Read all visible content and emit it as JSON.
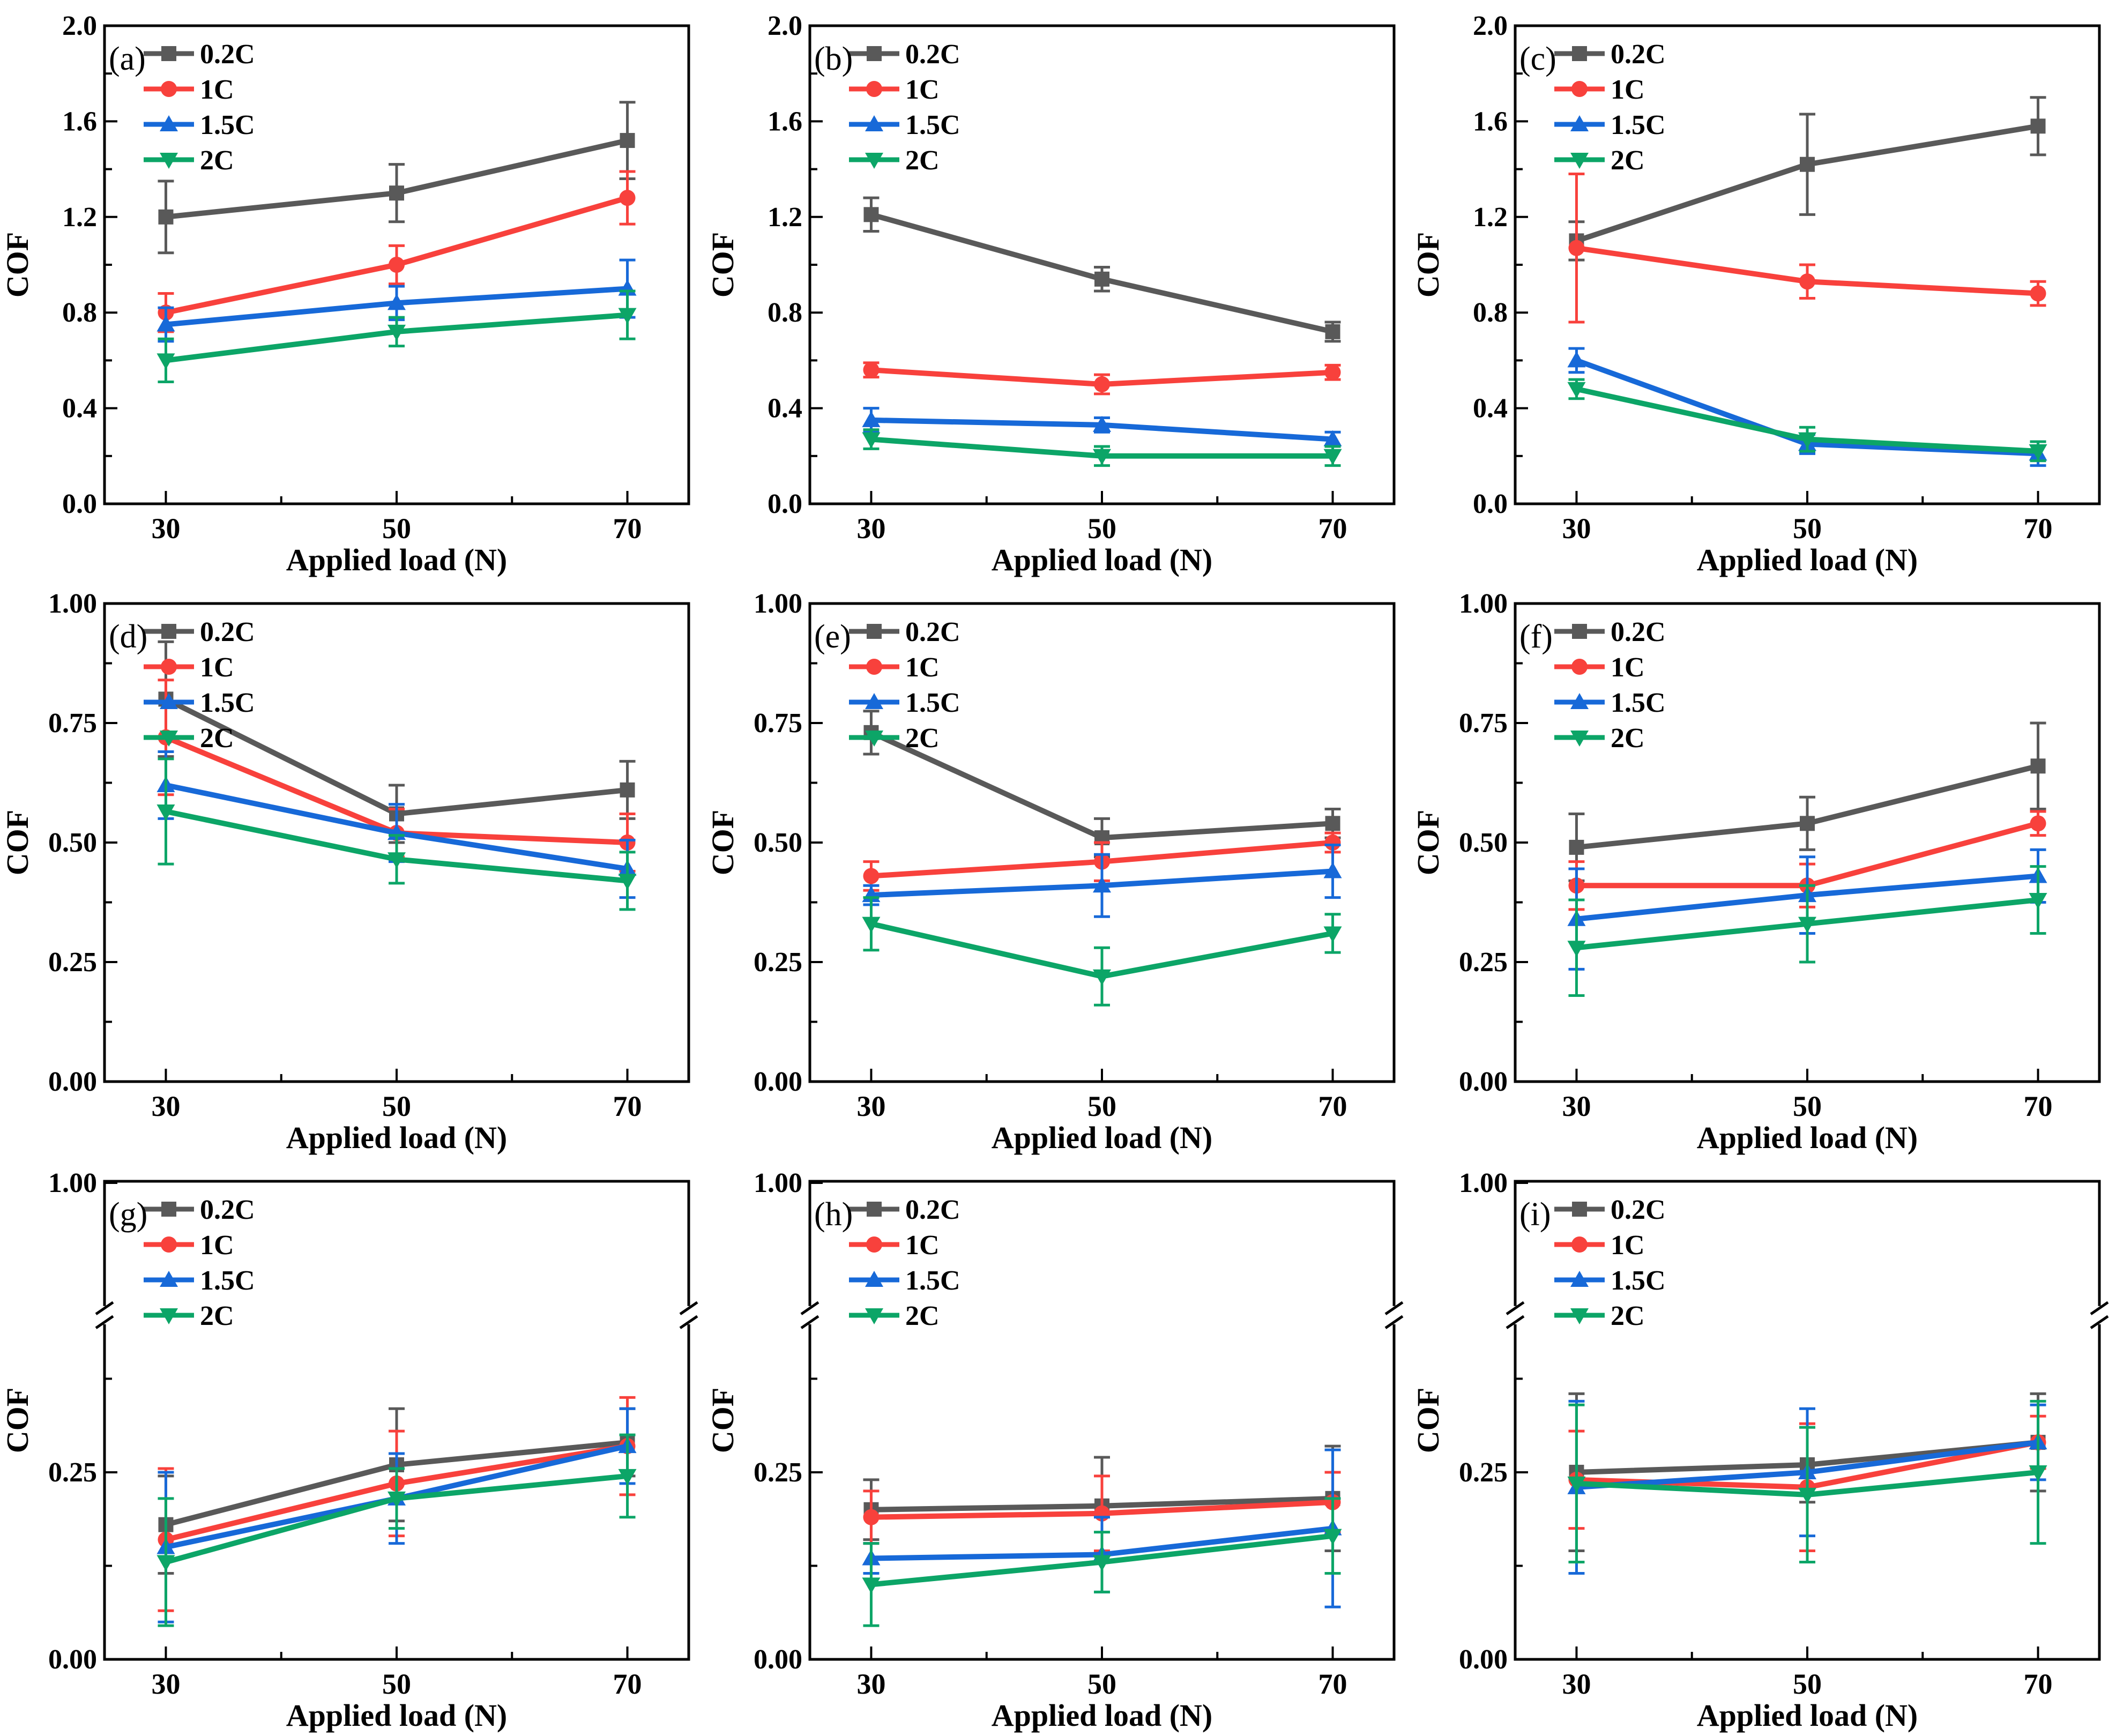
{
  "figure": {
    "xlabel": "Applied load (N)",
    "ylabel": "COF",
    "series_styles": [
      {
        "name": "0.2C",
        "color": "#595959",
        "marker": "square"
      },
      {
        "name": "1C",
        "color": "#F8413C",
        "marker": "circle"
      },
      {
        "name": "1.5C",
        "color": "#1769D8",
        "marker": "triangle-up"
      },
      {
        "name": "2C",
        "color": "#0CA567",
        "marker": "triangle-down"
      }
    ],
    "legend_labels": [
      "0.2C",
      "1C",
      "1.5C",
      "2C"
    ],
    "x_tick_labels": [
      "30",
      "50",
      "70"
    ]
  },
  "chart_data": [
    {
      "id": "a",
      "panel_label": "(a)",
      "type": "line",
      "x": [
        30,
        50,
        70
      ],
      "xlabel": "Applied load (N)",
      "ylabel": "COF",
      "ylim": [
        0,
        2.0
      ],
      "yticks": [
        {
          "v": 0,
          "label": "0.0"
        },
        {
          "v": 0.4,
          "label": "0.4"
        },
        {
          "v": 0.8,
          "label": "0.8"
        },
        {
          "v": 1.2,
          "label": "1.2"
        },
        {
          "v": 1.6,
          "label": "1.6"
        },
        {
          "v": 2.0,
          "label": "2.0"
        }
      ],
      "yminor": [
        0.2,
        0.6,
        1.0,
        1.4,
        1.8
      ],
      "legend_position": "top-left",
      "grid": false,
      "series": [
        {
          "name": "0.2C",
          "values": [
            1.2,
            1.3,
            1.52
          ],
          "err": [
            0.15,
            0.12,
            0.16
          ]
        },
        {
          "name": "1C",
          "values": [
            0.8,
            1.0,
            1.28
          ],
          "err": [
            0.08,
            0.08,
            0.11
          ]
        },
        {
          "name": "1.5C",
          "values": [
            0.75,
            0.84,
            0.9
          ],
          "err": [
            0.07,
            0.07,
            0.12
          ]
        },
        {
          "name": "2C",
          "values": [
            0.6,
            0.72,
            0.79
          ],
          "err": [
            0.09,
            0.06,
            0.1
          ]
        }
      ]
    },
    {
      "id": "b",
      "panel_label": "(b)",
      "type": "line",
      "x": [
        30,
        50,
        70
      ],
      "xlabel": "Applied load (N)",
      "ylabel": "COF",
      "ylim": [
        0,
        2.0
      ],
      "yticks": [
        {
          "v": 0,
          "label": "0.0"
        },
        {
          "v": 0.4,
          "label": "0.4"
        },
        {
          "v": 0.8,
          "label": "0.8"
        },
        {
          "v": 1.2,
          "label": "1.2"
        },
        {
          "v": 1.6,
          "label": "1.6"
        },
        {
          "v": 2.0,
          "label": "2.0"
        }
      ],
      "yminor": [
        0.2,
        0.6,
        1.0,
        1.4,
        1.8
      ],
      "legend_position": "top-left",
      "grid": false,
      "series": [
        {
          "name": "0.2C",
          "values": [
            1.21,
            0.94,
            0.72
          ],
          "err": [
            0.07,
            0.05,
            0.04
          ]
        },
        {
          "name": "1C",
          "values": [
            0.56,
            0.5,
            0.55
          ],
          "err": [
            0.03,
            0.04,
            0.03
          ]
        },
        {
          "name": "1.5C",
          "values": [
            0.35,
            0.33,
            0.27
          ],
          "err": [
            0.05,
            0.03,
            0.03
          ]
        },
        {
          "name": "2C",
          "values": [
            0.27,
            0.2,
            0.2
          ],
          "err": [
            0.04,
            0.04,
            0.04
          ]
        }
      ]
    },
    {
      "id": "c",
      "panel_label": "(c)",
      "type": "line",
      "x": [
        30,
        50,
        70
      ],
      "xlabel": "Applied load (N)",
      "ylabel": "COF",
      "ylim": [
        0,
        2.0
      ],
      "yticks": [
        {
          "v": 0,
          "label": "0.0"
        },
        {
          "v": 0.4,
          "label": "0.4"
        },
        {
          "v": 0.8,
          "label": "0.8"
        },
        {
          "v": 1.2,
          "label": "1.2"
        },
        {
          "v": 1.6,
          "label": "1.6"
        },
        {
          "v": 2.0,
          "label": "2.0"
        }
      ],
      "yminor": [
        0.2,
        0.6,
        1.0,
        1.4,
        1.8
      ],
      "legend_position": "top-left",
      "grid": false,
      "series": [
        {
          "name": "0.2C",
          "values": [
            1.1,
            1.42,
            1.58
          ],
          "err": [
            0.08,
            0.21,
            0.12
          ]
        },
        {
          "name": "1C",
          "values": [
            1.07,
            0.93,
            0.88
          ],
          "err": [
            0.31,
            0.07,
            0.05
          ]
        },
        {
          "name": "1.5C",
          "values": [
            0.6,
            0.25,
            0.21
          ],
          "err": [
            0.05,
            0.04,
            0.05
          ]
        },
        {
          "name": "2C",
          "values": [
            0.48,
            0.27,
            0.22
          ],
          "err": [
            0.04,
            0.05,
            0.04
          ]
        }
      ]
    },
    {
      "id": "d",
      "panel_label": "(d)",
      "type": "line",
      "x": [
        30,
        50,
        70
      ],
      "xlabel": "Applied load (N)",
      "ylabel": "COF",
      "ylim": [
        0,
        1.0
      ],
      "yticks": [
        {
          "v": 0,
          "label": "0.00"
        },
        {
          "v": 0.25,
          "label": "0.25"
        },
        {
          "v": 0.5,
          "label": "0.50"
        },
        {
          "v": 0.75,
          "label": "0.75"
        },
        {
          "v": 1.0,
          "label": "1.00"
        }
      ],
      "yminor": [
        0.125,
        0.375,
        0.625,
        0.875
      ],
      "legend_position": "top-left",
      "grid": false,
      "series": [
        {
          "name": "0.2C",
          "values": [
            0.8,
            0.56,
            0.61
          ],
          "err": [
            0.12,
            0.06,
            0.06
          ]
        },
        {
          "name": "1C",
          "values": [
            0.72,
            0.52,
            0.5
          ],
          "err": [
            0.12,
            0.05,
            0.06
          ]
        },
        {
          "name": "1.5C",
          "values": [
            0.62,
            0.52,
            0.445
          ],
          "err": [
            0.07,
            0.06,
            0.06
          ]
        },
        {
          "name": "2C",
          "values": [
            0.565,
            0.465,
            0.42
          ],
          "err": [
            0.11,
            0.05,
            0.06
          ]
        }
      ]
    },
    {
      "id": "e",
      "panel_label": "(e)",
      "type": "line",
      "x": [
        30,
        50,
        70
      ],
      "xlabel": "Applied load (N)",
      "ylabel": "COF",
      "ylim": [
        0,
        1.0
      ],
      "yticks": [
        {
          "v": 0,
          "label": "0.00"
        },
        {
          "v": 0.25,
          "label": "0.25"
        },
        {
          "v": 0.5,
          "label": "0.50"
        },
        {
          "v": 0.75,
          "label": "0.75"
        },
        {
          "v": 1.0,
          "label": "1.00"
        }
      ],
      "yminor": [
        0.125,
        0.375,
        0.625,
        0.875
      ],
      "legend_position": "top-left",
      "grid": false,
      "series": [
        {
          "name": "0.2C",
          "values": [
            0.73,
            0.51,
            0.54
          ],
          "err": [
            0.045,
            0.04,
            0.03
          ]
        },
        {
          "name": "1C",
          "values": [
            0.43,
            0.46,
            0.5
          ],
          "err": [
            0.03,
            0.04,
            0.02
          ]
        },
        {
          "name": "1.5C",
          "values": [
            0.39,
            0.41,
            0.44
          ],
          "err": [
            0.02,
            0.065,
            0.055
          ]
        },
        {
          "name": "2C",
          "values": [
            0.33,
            0.22,
            0.31
          ],
          "err": [
            0.055,
            0.06,
            0.04
          ]
        }
      ]
    },
    {
      "id": "f",
      "panel_label": "(f)",
      "type": "line",
      "x": [
        30,
        50,
        70
      ],
      "xlabel": "Applied load (N)",
      "ylabel": "COF",
      "ylim": [
        0,
        1.0
      ],
      "yticks": [
        {
          "v": 0,
          "label": "0.00"
        },
        {
          "v": 0.25,
          "label": "0.25"
        },
        {
          "v": 0.5,
          "label": "0.50"
        },
        {
          "v": 0.75,
          "label": "0.75"
        },
        {
          "v": 1.0,
          "label": "1.00"
        }
      ],
      "yminor": [
        0.125,
        0.375,
        0.625,
        0.875
      ],
      "legend_position": "top-left",
      "grid": false,
      "series": [
        {
          "name": "0.2C",
          "values": [
            0.49,
            0.54,
            0.66
          ],
          "err": [
            0.07,
            0.055,
            0.09
          ]
        },
        {
          "name": "1C",
          "values": [
            0.41,
            0.41,
            0.54
          ],
          "err": [
            0.05,
            0.045,
            0.025
          ]
        },
        {
          "name": "1.5C",
          "values": [
            0.34,
            0.39,
            0.43
          ],
          "err": [
            0.105,
            0.08,
            0.055
          ]
        },
        {
          "name": "2C",
          "values": [
            0.28,
            0.33,
            0.38
          ],
          "err": [
            0.1,
            0.08,
            0.07
          ]
        }
      ]
    },
    {
      "id": "g",
      "panel_label": "(g)",
      "type": "line",
      "x": [
        30,
        50,
        70
      ],
      "xlabel": "Applied load (N)",
      "ylabel": "COF",
      "ylim": [
        0,
        1.0
      ],
      "axis_break": {
        "lower_max": 0.46,
        "break_frac": 0.28,
        "upper_label": "1.00"
      },
      "yticks": [
        {
          "v": 0,
          "label": "0.00"
        },
        {
          "v": 0.25,
          "label": "0.25"
        },
        {
          "v": 1.0,
          "label": "1.00"
        }
      ],
      "yminor": [
        0.125,
        0.375
      ],
      "legend_position": "top-left",
      "grid": false,
      "series": [
        {
          "name": "0.2C",
          "values": [
            0.18,
            0.26,
            0.29
          ],
          "err": [
            0.065,
            0.075,
            0.045
          ]
        },
        {
          "name": "1C",
          "values": [
            0.16,
            0.235,
            0.285
          ],
          "err": [
            0.095,
            0.07,
            0.065
          ]
        },
        {
          "name": "1.5C",
          "values": [
            0.15,
            0.215,
            0.285
          ],
          "err": [
            0.1,
            0.06,
            0.05
          ]
        },
        {
          "name": "2C",
          "values": [
            0.13,
            0.215,
            0.245
          ],
          "err": [
            0.085,
            0.04,
            0.055
          ]
        }
      ]
    },
    {
      "id": "h",
      "panel_label": "(h)",
      "type": "line",
      "x": [
        30,
        50,
        70
      ],
      "xlabel": "Applied load (N)",
      "ylabel": "COF",
      "ylim": [
        0,
        1.0
      ],
      "axis_break": {
        "lower_max": 0.46,
        "break_frac": 0.28,
        "upper_label": "1.00"
      },
      "yticks": [
        {
          "v": 0,
          "label": "0.00"
        },
        {
          "v": 0.25,
          "label": "0.25"
        },
        {
          "v": 1.0,
          "label": "1.00"
        }
      ],
      "yminor": [
        0.125,
        0.375
      ],
      "legend_position": "top-left",
      "grid": false,
      "series": [
        {
          "name": "0.2C",
          "values": [
            0.2,
            0.205,
            0.215
          ],
          "err": [
            0.04,
            0.065,
            0.07
          ]
        },
        {
          "name": "1C",
          "values": [
            0.19,
            0.195,
            0.21
          ],
          "err": [
            0.035,
            0.05,
            0.04
          ]
        },
        {
          "name": "1.5C",
          "values": [
            0.135,
            0.14,
            0.175
          ],
          "err": [
            0.02,
            0.05,
            0.105
          ]
        },
        {
          "name": "2C",
          "values": [
            0.1,
            0.13,
            0.165
          ],
          "err": [
            0.055,
            0.04,
            0.05
          ]
        }
      ]
    },
    {
      "id": "i",
      "panel_label": "(i)",
      "type": "line",
      "x": [
        30,
        50,
        70
      ],
      "xlabel": "Applied load (N)",
      "ylabel": "COF",
      "ylim": [
        0,
        1.0
      ],
      "axis_break": {
        "lower_max": 0.46,
        "break_frac": 0.28,
        "upper_label": "1.00"
      },
      "yticks": [
        {
          "v": 0,
          "label": "0.00"
        },
        {
          "v": 0.25,
          "label": "0.25"
        },
        {
          "v": 1.0,
          "label": "1.00"
        }
      ],
      "yminor": [
        0.125,
        0.375
      ],
      "legend_position": "top-left",
      "grid": false,
      "series": [
        {
          "name": "0.2C",
          "values": [
            0.25,
            0.26,
            0.29
          ],
          "err": [
            0.105,
            0.05,
            0.065
          ]
        },
        {
          "name": "1C",
          "values": [
            0.24,
            0.23,
            0.29
          ],
          "err": [
            0.065,
            0.085,
            0.035
          ]
        },
        {
          "name": "1.5C",
          "values": [
            0.23,
            0.25,
            0.29
          ],
          "err": [
            0.115,
            0.085,
            0.05
          ]
        },
        {
          "name": "2C",
          "values": [
            0.235,
            0.22,
            0.25
          ],
          "err": [
            0.105,
            0.09,
            0.095
          ]
        }
      ]
    }
  ]
}
